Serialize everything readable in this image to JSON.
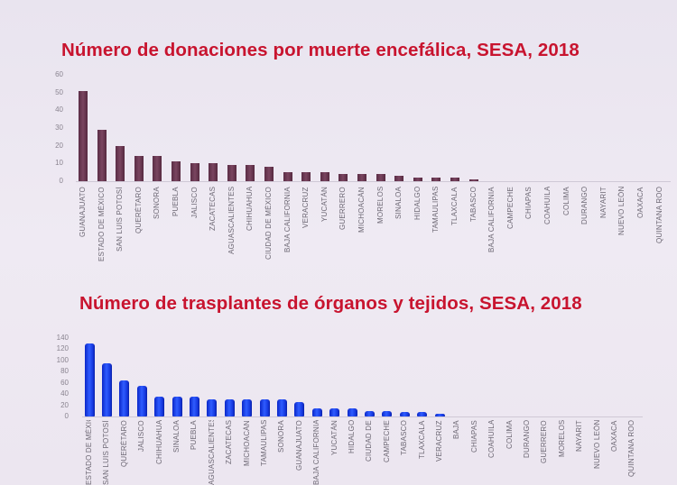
{
  "chart_data": [
    {
      "type": "bar",
      "title": "Número de donaciones por muerte encefálica, SESA, 2018",
      "xlabel": "",
      "ylabel": "",
      "ylim": [
        0,
        60
      ],
      "yticks": [
        "0",
        "10",
        "20",
        "30",
        "40",
        "50",
        "60"
      ],
      "color": "#6a3650",
      "categories": [
        "GUANAJUATO",
        "ESTADO DE MÉXICO",
        "SAN LUIS POTOSÍ",
        "QUERÉTARO",
        "SONORA",
        "PUEBLA",
        "JALISCO",
        "ZACATECAS",
        "AGUASCALIENTES",
        "CHIHUAHUA",
        "CIUDAD DE MÉXICO",
        "BAJA CALIFORNIA",
        "VERACRUZ",
        "YUCATÁN",
        "GUERRERO",
        "MICHOACÁN",
        "MORELOS",
        "SINALOA",
        "HIDALGO",
        "TAMAULIPAS",
        "TLAXCALA",
        "TABASCO",
        "BAJA CALIFORNIA",
        "CAMPECHE",
        "CHIAPAS",
        "COAHUILA",
        "COLIMA",
        "DURANGO",
        "NAYARIT",
        "NUEVO LEÓN",
        "OAXACA",
        "QUINTANA ROO"
      ],
      "values": [
        51,
        29,
        20,
        14,
        14,
        11,
        10,
        10,
        9,
        9,
        8,
        5,
        5,
        5,
        4,
        4,
        4,
        3,
        2,
        2,
        2,
        1,
        0,
        0,
        0,
        0,
        0,
        0,
        0,
        0,
        0,
        0
      ]
    },
    {
      "type": "bar",
      "title": "Número de trasplantes de órganos y tejidos, SESA, 2018",
      "xlabel": "",
      "ylabel": "",
      "ylim": [
        0,
        140
      ],
      "yticks": [
        "0",
        "20",
        "40",
        "60",
        "80",
        "100",
        "120",
        "140"
      ],
      "color": "#1f45f0",
      "categories": [
        "ESTADO DE MÉXICO",
        "SAN LUIS POTOSÍ",
        "QUERÉTARO",
        "JALISCO",
        "CHIHUAHUA",
        "SINALOA",
        "PUEBLA",
        "AGUASCALIENTES",
        "ZACATECAS",
        "MICHOACÁN",
        "TAMAULIPAS",
        "SONORA",
        "GUANAJUATO",
        "BAJA CALIFORNIA",
        "YUCATÁN",
        "HIDALGO",
        "CIUDAD DE",
        "CAMPECHE",
        "TABASCO",
        "TLAXCALA",
        "VERACRUZ",
        "BAJA",
        "CHIAPAS",
        "COAHUILA",
        "COLIMA",
        "DURANGO",
        "GUERRERO",
        "MORELOS",
        "NAYARIT",
        "NUEVO LEÓN",
        "OAXACA",
        "QUINTANA ROO"
      ],
      "values": [
        130,
        95,
        65,
        55,
        35,
        35,
        35,
        30,
        30,
        30,
        30,
        30,
        25,
        15,
        15,
        15,
        10,
        10,
        8,
        8,
        5,
        0,
        0,
        0,
        0,
        0,
        0,
        0,
        0,
        0,
        0,
        0
      ]
    }
  ]
}
